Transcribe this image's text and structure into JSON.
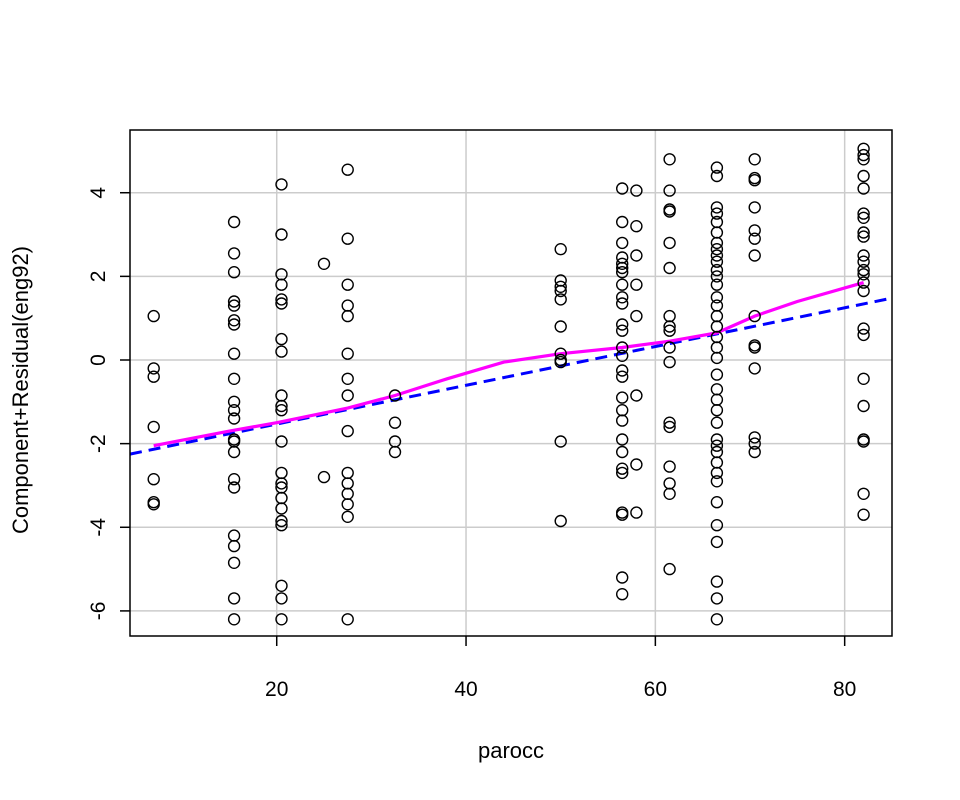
{
  "chart_data": {
    "type": "scatter",
    "title": "",
    "xlabel": "parocc",
    "ylabel": "Component+Residual(eng92)",
    "xlim": [
      4.5,
      85
    ],
    "ylim": [
      -6.6,
      5.5
    ],
    "xticks": [
      "20",
      "40",
      "60",
      "80"
    ],
    "yticks": [
      "-6",
      "-4",
      "-2",
      "0",
      "2",
      "4"
    ],
    "grid": true,
    "colors": {
      "points": "#000000",
      "linear_fit": "#0000ff",
      "smooth_fit": "#ff00ff",
      "grid": "#cccccc"
    },
    "points": [
      [
        7,
        1.05
      ],
      [
        7,
        -0.2
      ],
      [
        7,
        -0.4
      ],
      [
        7,
        -1.6
      ],
      [
        7,
        -2.85
      ],
      [
        7,
        -3.4
      ],
      [
        7,
        -3.45
      ],
      [
        15.5,
        3.3
      ],
      [
        15.5,
        2.55
      ],
      [
        15.5,
        2.1
      ],
      [
        15.5,
        1.4
      ],
      [
        15.5,
        1.3
      ],
      [
        15.5,
        0.95
      ],
      [
        15.5,
        0.85
      ],
      [
        15.5,
        0.15
      ],
      [
        15.5,
        -0.45
      ],
      [
        15.5,
        -1.0
      ],
      [
        15.5,
        -1.2
      ],
      [
        15.5,
        -1.4
      ],
      [
        15.5,
        -1.9
      ],
      [
        15.5,
        -1.95
      ],
      [
        15.5,
        -2.2
      ],
      [
        15.5,
        -2.85
      ],
      [
        15.5,
        -3.05
      ],
      [
        15.5,
        -4.2
      ],
      [
        15.5,
        -4.45
      ],
      [
        15.5,
        -4.85
      ],
      [
        15.5,
        -5.7
      ],
      [
        15.5,
        -6.2
      ],
      [
        20.5,
        4.2
      ],
      [
        20.5,
        3.0
      ],
      [
        20.5,
        2.05
      ],
      [
        20.5,
        1.8
      ],
      [
        20.5,
        1.45
      ],
      [
        20.5,
        1.35
      ],
      [
        20.5,
        0.5
      ],
      [
        20.5,
        0.2
      ],
      [
        20.5,
        -0.85
      ],
      [
        20.5,
        -1.1
      ],
      [
        20.5,
        -1.2
      ],
      [
        20.5,
        -1.95
      ],
      [
        20.5,
        -2.7
      ],
      [
        20.5,
        -2.95
      ],
      [
        20.5,
        -3.05
      ],
      [
        20.5,
        -3.3
      ],
      [
        20.5,
        -3.55
      ],
      [
        20.5,
        -3.85
      ],
      [
        20.5,
        -3.95
      ],
      [
        20.5,
        -5.4
      ],
      [
        20.5,
        -5.7
      ],
      [
        20.5,
        -6.2
      ],
      [
        25,
        2.3
      ],
      [
        25,
        -2.8
      ],
      [
        27.5,
        4.55
      ],
      [
        27.5,
        2.9
      ],
      [
        27.5,
        1.8
      ],
      [
        27.5,
        1.3
      ],
      [
        27.5,
        1.05
      ],
      [
        27.5,
        0.15
      ],
      [
        27.5,
        -0.45
      ],
      [
        27.5,
        -0.85
      ],
      [
        27.5,
        -1.7
      ],
      [
        27.5,
        -2.7
      ],
      [
        27.5,
        -2.95
      ],
      [
        27.5,
        -3.2
      ],
      [
        27.5,
        -3.45
      ],
      [
        27.5,
        -3.75
      ],
      [
        27.5,
        -6.2
      ],
      [
        32.5,
        -0.85
      ],
      [
        32.5,
        -1.5
      ],
      [
        32.5,
        -1.95
      ],
      [
        32.5,
        -2.2
      ],
      [
        50,
        2.65
      ],
      [
        50,
        1.9
      ],
      [
        50,
        1.75
      ],
      [
        50,
        1.65
      ],
      [
        50,
        1.45
      ],
      [
        50,
        0.8
      ],
      [
        50,
        0.15
      ],
      [
        50,
        0.0
      ],
      [
        50,
        -0.05
      ],
      [
        50,
        -1.95
      ],
      [
        50,
        -3.85
      ],
      [
        56.5,
        4.1
      ],
      [
        56.5,
        3.3
      ],
      [
        56.5,
        2.8
      ],
      [
        56.5,
        2.45
      ],
      [
        56.5,
        2.3
      ],
      [
        56.5,
        2.2
      ],
      [
        56.5,
        2.1
      ],
      [
        56.5,
        1.8
      ],
      [
        56.5,
        1.5
      ],
      [
        56.5,
        1.35
      ],
      [
        56.5,
        0.85
      ],
      [
        56.5,
        0.7
      ],
      [
        56.5,
        0.3
      ],
      [
        56.5,
        0.1
      ],
      [
        56.5,
        -0.25
      ],
      [
        56.5,
        -0.4
      ],
      [
        56.5,
        -0.9
      ],
      [
        56.5,
        -1.2
      ],
      [
        56.5,
        -1.45
      ],
      [
        56.5,
        -1.9
      ],
      [
        56.5,
        -2.2
      ],
      [
        56.5,
        -2.6
      ],
      [
        56.5,
        -2.7
      ],
      [
        56.5,
        -3.65
      ],
      [
        56.5,
        -3.7
      ],
      [
        56.5,
        -5.2
      ],
      [
        56.5,
        -5.6
      ],
      [
        58,
        4.05
      ],
      [
        58,
        3.2
      ],
      [
        58,
        2.5
      ],
      [
        58,
        1.8
      ],
      [
        58,
        1.05
      ],
      [
        58,
        -0.85
      ],
      [
        58,
        -2.5
      ],
      [
        58,
        -3.65
      ],
      [
        61.5,
        4.8
      ],
      [
        61.5,
        4.05
      ],
      [
        61.5,
        3.6
      ],
      [
        61.5,
        3.55
      ],
      [
        61.5,
        2.8
      ],
      [
        61.5,
        2.2
      ],
      [
        61.5,
        1.05
      ],
      [
        61.5,
        0.8
      ],
      [
        61.5,
        0.7
      ],
      [
        61.5,
        0.3
      ],
      [
        61.5,
        -0.05
      ],
      [
        61.5,
        -1.5
      ],
      [
        61.5,
        -1.6
      ],
      [
        61.5,
        -2.55
      ],
      [
        61.5,
        -2.95
      ],
      [
        61.5,
        -3.2
      ],
      [
        61.5,
        -5.0
      ],
      [
        66.5,
        4.6
      ],
      [
        66.5,
        4.4
      ],
      [
        66.5,
        3.65
      ],
      [
        66.5,
        3.5
      ],
      [
        66.5,
        3.3
      ],
      [
        66.5,
        3.05
      ],
      [
        66.5,
        2.8
      ],
      [
        66.5,
        2.65
      ],
      [
        66.5,
        2.5
      ],
      [
        66.5,
        2.35
      ],
      [
        66.5,
        2.15
      ],
      [
        66.5,
        2.0
      ],
      [
        66.5,
        1.8
      ],
      [
        66.5,
        1.5
      ],
      [
        66.5,
        1.3
      ],
      [
        66.5,
        1.05
      ],
      [
        66.5,
        0.8
      ],
      [
        66.5,
        0.55
      ],
      [
        66.5,
        0.3
      ],
      [
        66.5,
        0.05
      ],
      [
        66.5,
        -0.35
      ],
      [
        66.5,
        -0.7
      ],
      [
        66.5,
        -0.95
      ],
      [
        66.5,
        -1.2
      ],
      [
        66.5,
        -1.5
      ],
      [
        66.5,
        -1.9
      ],
      [
        66.5,
        -2.05
      ],
      [
        66.5,
        -2.2
      ],
      [
        66.5,
        -2.45
      ],
      [
        66.5,
        -2.7
      ],
      [
        66.5,
        -2.9
      ],
      [
        66.5,
        -3.4
      ],
      [
        66.5,
        -3.95
      ],
      [
        66.5,
        -4.35
      ],
      [
        66.5,
        -5.3
      ],
      [
        66.5,
        -5.7
      ],
      [
        66.5,
        -6.2
      ],
      [
        70.5,
        4.8
      ],
      [
        70.5,
        4.35
      ],
      [
        70.5,
        4.3
      ],
      [
        70.5,
        3.65
      ],
      [
        70.5,
        3.1
      ],
      [
        70.5,
        2.9
      ],
      [
        70.5,
        2.5
      ],
      [
        70.5,
        1.05
      ],
      [
        70.5,
        0.35
      ],
      [
        70.5,
        0.3
      ],
      [
        70.5,
        -0.2
      ],
      [
        70.5,
        -1.85
      ],
      [
        70.5,
        -2.0
      ],
      [
        70.5,
        -2.2
      ],
      [
        82,
        5.05
      ],
      [
        82,
        4.9
      ],
      [
        82,
        4.8
      ],
      [
        82,
        4.4
      ],
      [
        82,
        4.1
      ],
      [
        82,
        3.5
      ],
      [
        82,
        3.4
      ],
      [
        82,
        3.05
      ],
      [
        82,
        2.95
      ],
      [
        82,
        2.5
      ],
      [
        82,
        2.35
      ],
      [
        82,
        2.15
      ],
      [
        82,
        2.05
      ],
      [
        82,
        1.85
      ],
      [
        82,
        1.65
      ],
      [
        82,
        0.75
      ],
      [
        82,
        0.6
      ],
      [
        82,
        -0.45
      ],
      [
        82,
        -1.1
      ],
      [
        82,
        -1.9
      ],
      [
        82,
        -1.95
      ],
      [
        82,
        -3.2
      ],
      [
        82,
        -3.7
      ]
    ],
    "linear_fit": {
      "style": "dashed",
      "points": [
        [
          4.5,
          -2.25
        ],
        [
          85,
          1.48
        ]
      ]
    },
    "smooth_fit": {
      "style": "solid",
      "points": [
        [
          7,
          -2.05
        ],
        [
          15,
          -1.7
        ],
        [
          20,
          -1.5
        ],
        [
          27.5,
          -1.15
        ],
        [
          32.5,
          -0.85
        ],
        [
          38,
          -0.45
        ],
        [
          44,
          -0.05
        ],
        [
          50,
          0.15
        ],
        [
          56.5,
          0.3
        ],
        [
          61.5,
          0.45
        ],
        [
          66.5,
          0.65
        ],
        [
          70.5,
          1.05
        ],
        [
          75,
          1.4
        ],
        [
          82,
          1.85
        ]
      ]
    }
  }
}
